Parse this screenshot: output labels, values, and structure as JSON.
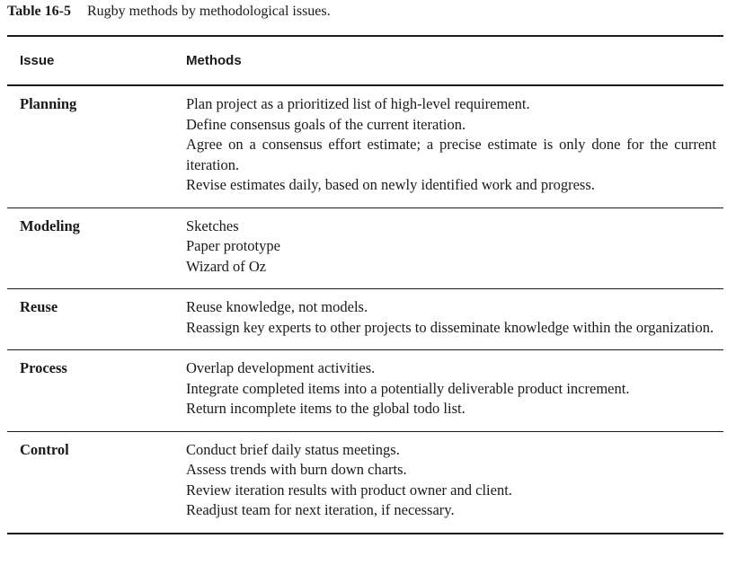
{
  "caption": {
    "label": "Table 16-5",
    "title": "Rugby methods by methodological issues."
  },
  "headers": {
    "issue": "Issue",
    "methods": "Methods"
  },
  "rows": [
    {
      "issue": "Planning",
      "methods": [
        "Plan project as a prioritized list of high-level requirement.",
        "Define consensus goals of the current iteration.",
        "Agree on a consensus effort estimate; a precise estimate is only done for the current iteration.",
        "Revise estimates daily, based on newly identified work and progress."
      ]
    },
    {
      "issue": "Modeling",
      "methods": [
        "Sketches",
        "Paper prototype",
        "Wizard of Oz"
      ]
    },
    {
      "issue": "Reuse",
      "methods": [
        "Reuse knowledge, not models.",
        "Reassign key experts to other projects to disseminate knowledge within the organization."
      ]
    },
    {
      "issue": "Process",
      "methods": [
        "Overlap development activities.",
        "Integrate completed items into a potentially deliverable product increment.",
        "Return incomplete items to the global todo list."
      ]
    },
    {
      "issue": "Control",
      "methods": [
        "Conduct brief daily status meetings.",
        "Assess trends with burn down charts.",
        "Review iteration results with product owner and client.",
        "Readjust team for next iteration, if necessary."
      ]
    }
  ]
}
